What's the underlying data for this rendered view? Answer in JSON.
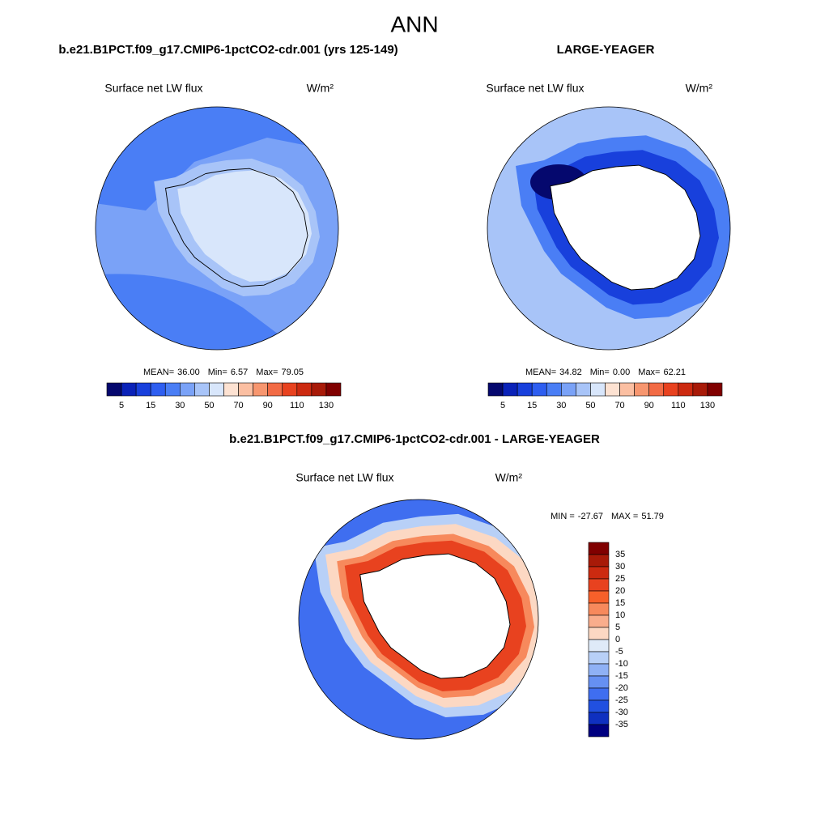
{
  "header": {
    "title": "ANN"
  },
  "panels": [
    {
      "title": "b.e21.B1PCT.f09_g17.CMIP6-1pctCO2-cdr.001 (yrs 125-149)",
      "variable": "Surface net LW flux",
      "units": "W/m²",
      "stats": [
        {
          "name": "MEAN=",
          "value": "36.00"
        },
        {
          "name": "Min=",
          "value": "6.57"
        },
        {
          "name": "Max=",
          "value": "79.05"
        }
      ]
    },
    {
      "title": "LARGE-YEAGER",
      "variable": "Surface net LW flux",
      "units": "W/m²",
      "stats": [
        {
          "name": "MEAN=",
          "value": "34.82"
        },
        {
          "name": "Min=",
          "value": "0.00"
        },
        {
          "name": "Max=",
          "value": "62.21"
        }
      ]
    },
    {
      "title": "b.e21.B1PCT.f09_g17.CMIP6-1pctCO2-cdr.001 - LARGE-YEAGER",
      "variable": "Surface net LW flux",
      "units": "W/m²",
      "stats": [
        {
          "name": "MIN =",
          "value": "-27.67"
        },
        {
          "name": "MAX =",
          "value": "51.79"
        }
      ]
    }
  ],
  "colorbar": {
    "labels": [
      5,
      15,
      30,
      50,
      70,
      90,
      110,
      130
    ],
    "colors": [
      "#05086e",
      "#0a22b8",
      "#1840dc",
      "#2e5ef0",
      "#4a7ef5",
      "#7aa2f7",
      "#a8c4f8",
      "#d8e6fb",
      "#fde2d2",
      "#fbbfa2",
      "#f7966f",
      "#f26b45",
      "#e8421f",
      "#cc2a10",
      "#a81a08",
      "#800000"
    ]
  },
  "diff_colorbar": {
    "labels": [
      35,
      30,
      25,
      20,
      15,
      10,
      5,
      0,
      -5,
      -10,
      -15,
      -20,
      -25,
      -30,
      -35
    ],
    "colors": [
      "#800000",
      "#a81a08",
      "#cc2a10",
      "#e8421f",
      "#f7602a",
      "#f7895c",
      "#f9ad8c",
      "#fcd8c3",
      "#dfeaf8",
      "#b8d0f7",
      "#8fb1f5",
      "#6690f2",
      "#3f6ef0",
      "#2150e0",
      "#0f30c0",
      "#000080"
    ]
  }
}
